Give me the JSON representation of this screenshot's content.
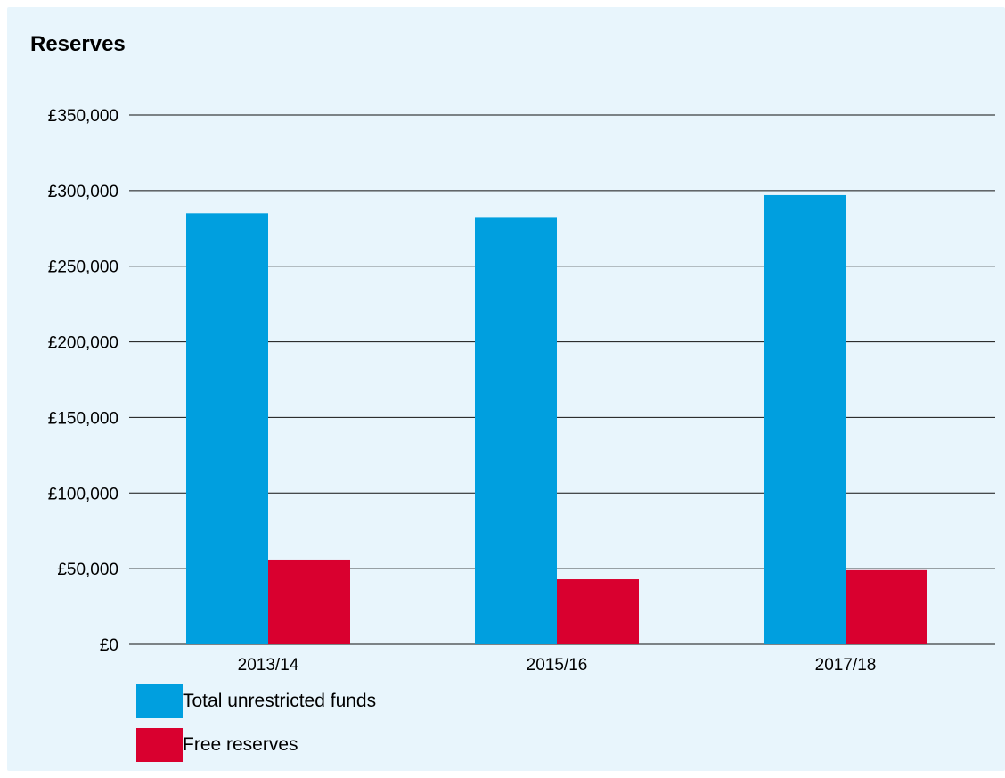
{
  "chart_data": {
    "type": "bar",
    "title": "Reserves",
    "categories": [
      "2013/14",
      "2015/16",
      "2017/18"
    ],
    "series": [
      {
        "name": "Total unrestricted funds",
        "values": [
          285000,
          282000,
          297000
        ],
        "color": "#009fdf"
      },
      {
        "name": "Free reserves",
        "values": [
          56000,
          43000,
          49000
        ],
        "color": "#d9002f"
      }
    ],
    "ylim": [
      0,
      350000
    ],
    "yticks": [
      0,
      50000,
      100000,
      150000,
      200000,
      250000,
      300000,
      350000
    ],
    "ytick_labels": [
      "£0",
      "£50,000",
      "£100,000",
      "£150,000",
      "£200,000",
      "£250,000",
      "£300,000",
      "£350,000"
    ],
    "grid": true,
    "legend_position": "bottom-left"
  }
}
